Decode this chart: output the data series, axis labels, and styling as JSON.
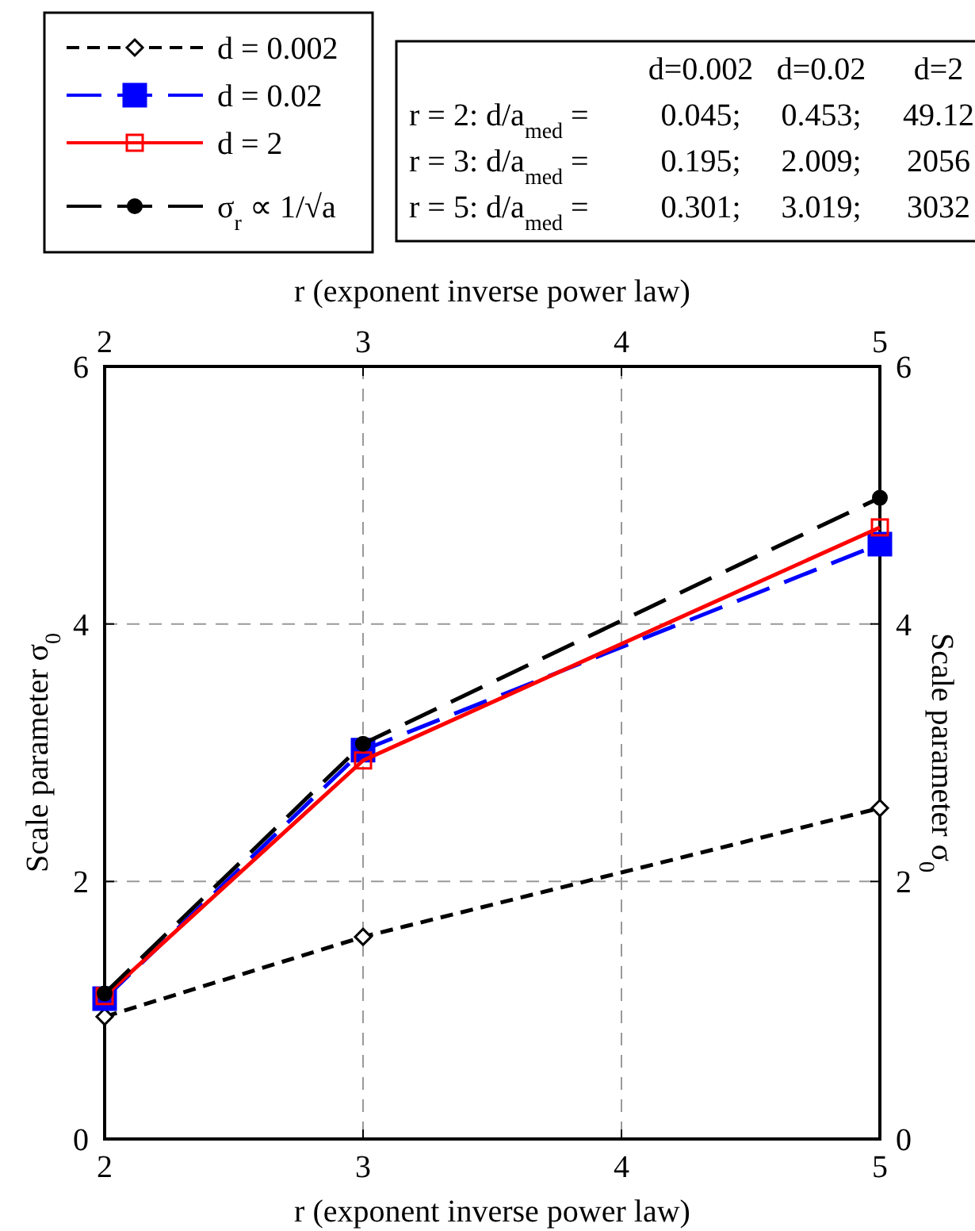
{
  "chart_data": {
    "type": "line",
    "xlabel": "r (exponent inverse power law)",
    "x2label": "r (exponent inverse power law)",
    "ylabel": "Scale parameter σ$_{0}$",
    "y2label": "Scale parameter σ$_{0}$",
    "x": [
      2,
      3,
      5
    ],
    "xlim": [
      2,
      5
    ],
    "xticks": [
      2,
      3,
      4,
      5
    ],
    "x2lim": [
      2,
      5
    ],
    "x2ticks": [
      2,
      3,
      4,
      5
    ],
    "ylim": [
      0,
      6
    ],
    "yticks": [
      0,
      2,
      4,
      6
    ],
    "y2lim": [
      0,
      6
    ],
    "y2ticks": [
      0,
      2,
      4,
      6
    ],
    "grid": true,
    "legend": "top left",
    "series": [
      {
        "name": "d = 0.002",
        "color": "#000000",
        "values": [
          0.95,
          1.57,
          2.57
        ],
        "marker": "diamond",
        "line_style": "dashed"
      },
      {
        "name": "d = 0.02",
        "color": "#0000ff",
        "values": [
          1.09,
          3.02,
          4.62
        ],
        "marker": "square",
        "line_style": "dashed"
      },
      {
        "name": "d = 2",
        "color": "#ff0000",
        "values": [
          1.11,
          2.94,
          4.75
        ],
        "marker": "square",
        "line_style": "solid"
      },
      {
        "name": "σ$_{r}$ ∝ 1/√a",
        "color": "#000000",
        "values": [
          1.13,
          3.07,
          4.98
        ],
        "marker": "circle",
        "line_style": "dashed"
      }
    ],
    "annotations": [
      "d=0.002",
      "d=0.02",
      "d=2",
      "r = 2: d/a$_{med}$ =",
      "0.045;",
      "0.453;",
      "49.12",
      "r = 3: d/a$_{med}$ =",
      "0.195;",
      "2.009;",
      "2056",
      "r = 5: d/a$_{med}$ =",
      "0.301;",
      "3.019;",
      "3032"
    ]
  }
}
